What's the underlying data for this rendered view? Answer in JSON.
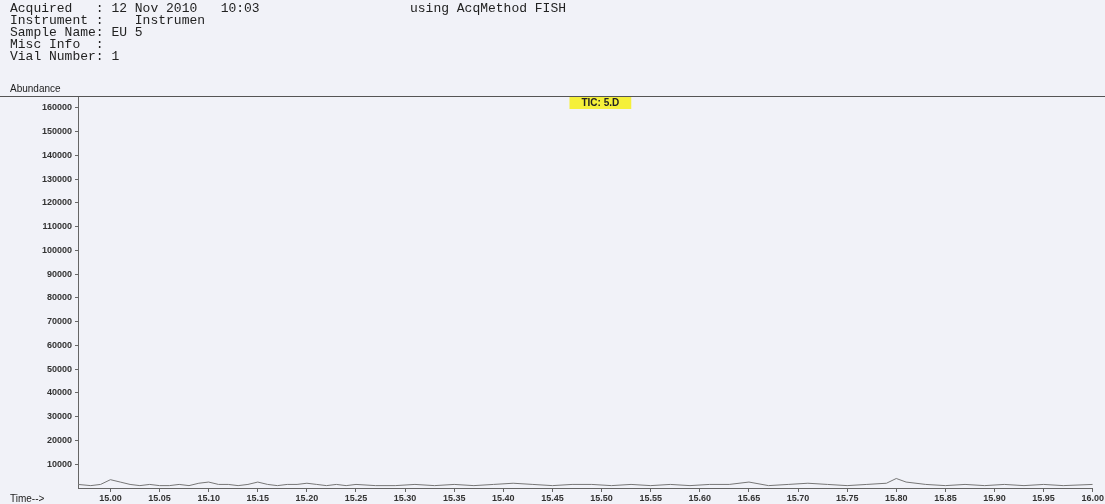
{
  "chart_data": {
    "type": "line",
    "title": "TIC: 5.D",
    "xlabel": "Time-->",
    "ylabel": "Abundance",
    "annotations": [
      "Acquired   : 12 Nov 2010   10:03",
      "using AcqMethod FISH",
      "Instrument :    Instrumen",
      "Sample Name: EU 5",
      "Misc Info  :",
      "Vial Number: 1"
    ],
    "x": [
      14.967,
      14.98,
      14.99,
      15.0,
      15.01,
      15.02,
      15.03,
      15.04,
      15.05,
      15.06,
      15.07,
      15.08,
      15.09,
      15.1,
      15.11,
      15.12,
      15.13,
      15.14,
      15.15,
      15.16,
      15.17,
      15.18,
      15.19,
      15.2,
      15.21,
      15.22,
      15.23,
      15.24,
      15.25,
      15.27,
      15.29,
      15.31,
      15.33,
      15.35,
      15.37,
      15.39,
      15.41,
      15.43,
      15.45,
      15.47,
      15.49,
      15.51,
      15.53,
      15.55,
      15.57,
      15.59,
      15.61,
      15.63,
      15.65,
      15.67,
      15.69,
      15.71,
      15.73,
      15.75,
      15.77,
      15.79,
      15.8,
      15.81,
      15.83,
      15.85,
      15.87,
      15.89,
      15.91,
      15.93,
      15.95,
      15.97,
      16.0
    ],
    "series": [
      {
        "color": "#777777",
        "values": [
          1500,
          1000,
          1500,
          3500,
          2500,
          1500,
          1000,
          1500,
          1000,
          1000,
          1500,
          1000,
          2000,
          2500,
          1500,
          1500,
          1000,
          1500,
          2500,
          1500,
          1000,
          1500,
          1500,
          2000,
          1500,
          1000,
          1500,
          1000,
          1500,
          1000,
          1000,
          1500,
          1000,
          1500,
          1000,
          1500,
          2000,
          1500,
          1000,
          1500,
          1500,
          1000,
          1500,
          1000,
          1500,
          1000,
          1500,
          1500,
          2500,
          1000,
          1500,
          2000,
          1500,
          1000,
          1500,
          2000,
          4000,
          2500,
          1500,
          1000,
          1500,
          1000,
          1500,
          1000,
          1500,
          1000,
          1500
        ]
      }
    ],
    "xlim": [
      14.967,
      16.0
    ],
    "xticks": [
      {
        "value": 15.0,
        "label": "15.00"
      },
      {
        "value": 15.05,
        "label": "15.05"
      },
      {
        "value": 15.1,
        "label": "15.10"
      },
      {
        "value": 15.15,
        "label": "15.15"
      },
      {
        "value": 15.2,
        "label": "15.20"
      },
      {
        "value": 15.25,
        "label": "15.25"
      },
      {
        "value": 15.3,
        "label": "15.30"
      },
      {
        "value": 15.35,
        "label": "15.35"
      },
      {
        "value": 15.4,
        "label": "15.40"
      },
      {
        "value": 15.45,
        "label": "15.45"
      },
      {
        "value": 15.5,
        "label": "15.50"
      },
      {
        "value": 15.55,
        "label": "15.55"
      },
      {
        "value": 15.6,
        "label": "15.60"
      },
      {
        "value": 15.65,
        "label": "15.65"
      },
      {
        "value": 15.7,
        "label": "15.70"
      },
      {
        "value": 15.75,
        "label": "15.75"
      },
      {
        "value": 15.8,
        "label": "15.80"
      },
      {
        "value": 15.85,
        "label": "15.85"
      },
      {
        "value": 15.9,
        "label": "15.90"
      },
      {
        "value": 15.95,
        "label": "15.95"
      },
      {
        "value": 16.0,
        "label": "16.00"
      }
    ],
    "ylim": [
      0,
      165000
    ],
    "yticks": [
      10000,
      20000,
      30000,
      40000,
      50000,
      60000,
      70000,
      80000,
      90000,
      100000,
      110000,
      120000,
      130000,
      140000,
      150000,
      160000
    ],
    "grid": false,
    "legend": false,
    "marker": "none",
    "line_style": "solid"
  }
}
